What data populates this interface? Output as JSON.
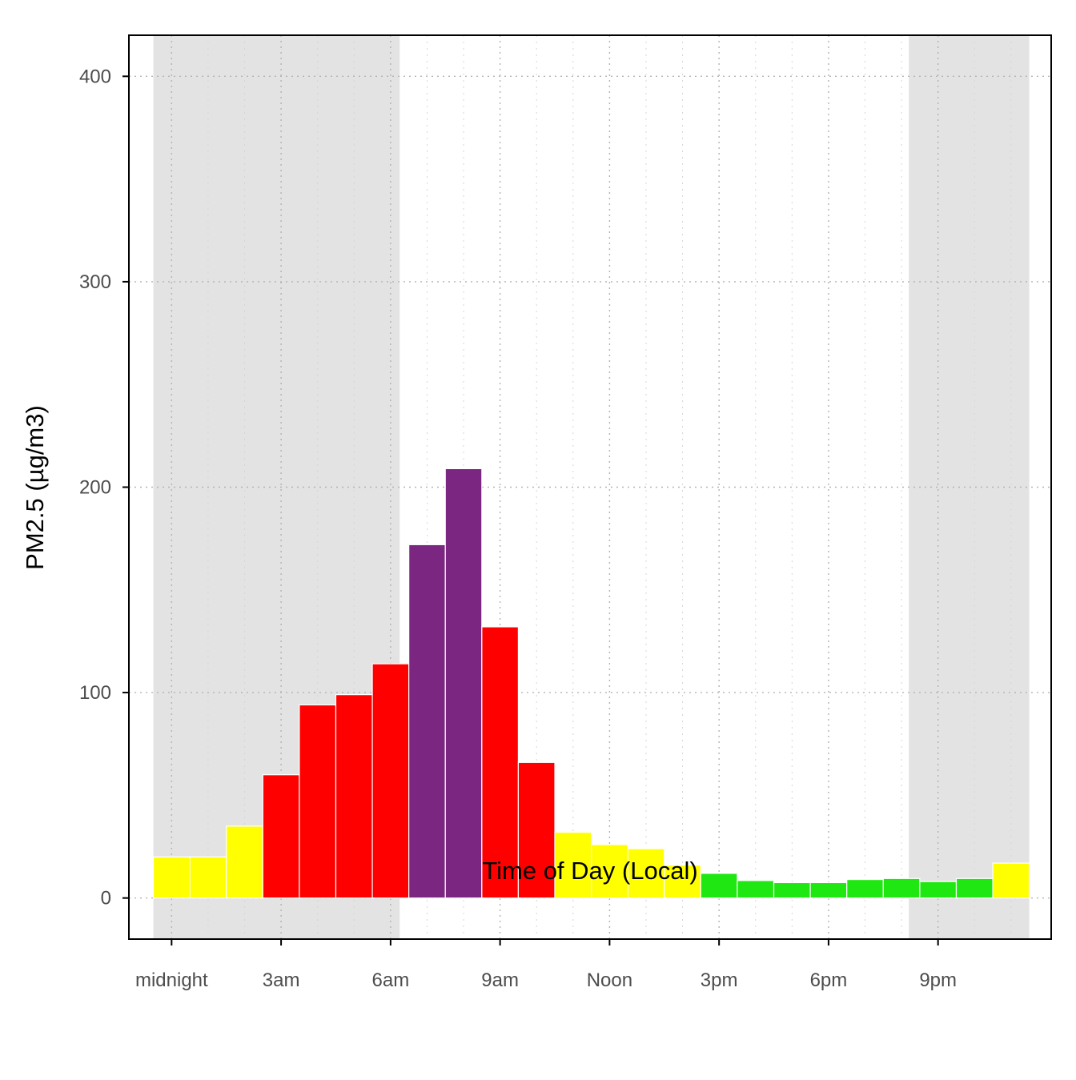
{
  "chart_data": {
    "type": "bar",
    "title": "",
    "xlabel": "Time of Day (Local)",
    "ylabel": "PM2.5 (µg/m3)",
    "ylim": [
      -20,
      420
    ],
    "yticks": [
      0,
      100,
      200,
      300,
      400
    ],
    "xticks": [
      {
        "hour": 0,
        "label": "midnight"
      },
      {
        "hour": 3,
        "label": "3am"
      },
      {
        "hour": 6,
        "label": "6am"
      },
      {
        "hour": 9,
        "label": "9am"
      },
      {
        "hour": 12,
        "label": "Noon"
      },
      {
        "hour": 15,
        "label": "3pm"
      },
      {
        "hour": 18,
        "label": "6pm"
      },
      {
        "hour": 21,
        "label": "9pm"
      }
    ],
    "night_shading": [
      {
        "start_hour": -0.5,
        "end_hour": 6.25
      },
      {
        "start_hour": 20.2,
        "end_hour": 23.5
      }
    ],
    "grid": "dotted",
    "hours": [
      0,
      1,
      2,
      3,
      4,
      5,
      6,
      7,
      8,
      9,
      10,
      11,
      12,
      13,
      14,
      15,
      16,
      17,
      18,
      19,
      20,
      21,
      22,
      23
    ],
    "values": [
      20,
      20,
      35,
      60,
      94,
      99,
      114,
      172,
      209,
      132,
      66,
      32,
      26,
      24,
      16,
      12,
      8.5,
      7.5,
      7.5,
      9,
      9.5,
      8,
      9.5,
      17
    ],
    "bar_colors": [
      "#FFFF00",
      "#FFFF00",
      "#FFFF00",
      "#FF0000",
      "#FF0000",
      "#FF0000",
      "#FF0000",
      "#7B2680",
      "#7B2680",
      "#FF0000",
      "#FF0000",
      "#FFFF00",
      "#FFFF00",
      "#FFFF00",
      "#FFFF00",
      "#1FE711",
      "#1FE711",
      "#1FE711",
      "#1FE711",
      "#1FE711",
      "#1FE711",
      "#1FE711",
      "#1FE711",
      "#FFFF00"
    ],
    "colors": {
      "night_band": "#E3E3E3",
      "grid": "#b3b3b3",
      "axis": "#000000",
      "bar_outline": "#ffffff"
    }
  }
}
